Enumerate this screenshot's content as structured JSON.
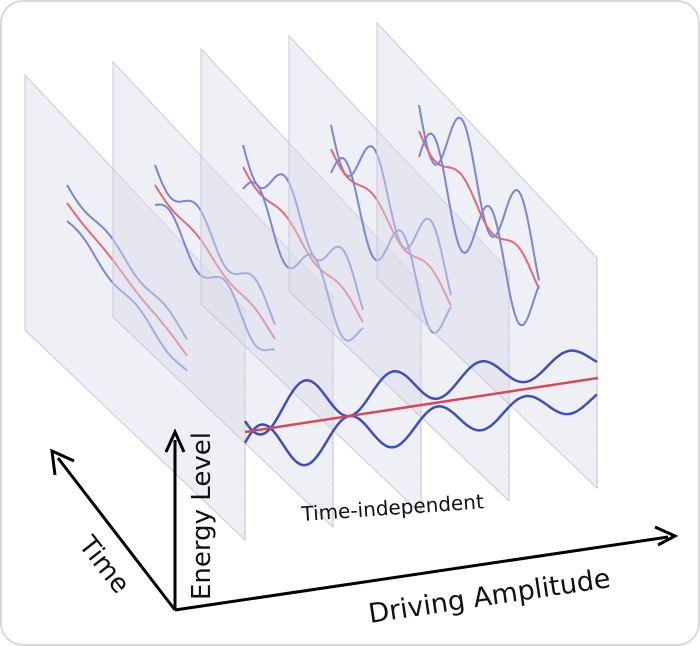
{
  "labels": {
    "time": "Time",
    "energy": "Energy Level",
    "amplitude": "Driving Amplitude",
    "time_independent": "Time-independent"
  }
}
